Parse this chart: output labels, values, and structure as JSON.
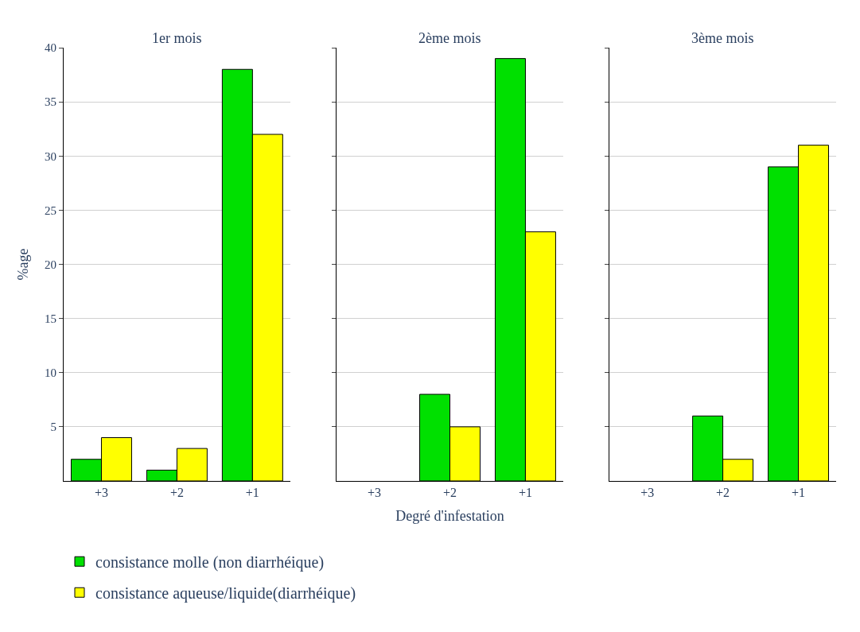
{
  "chart_data": [
    {
      "type": "bar",
      "title": "1er mois",
      "ylabel": "%age",
      "categories": [
        "+3",
        "+2",
        "+1"
      ],
      "ylim": [
        0,
        40
      ],
      "yticks": [
        5,
        10,
        15,
        20,
        25,
        30,
        35,
        40
      ],
      "grid": "y",
      "legend": "bottom",
      "series": [
        {
          "name": "consistance molle (non diarrhéique)",
          "color": "#00e000",
          "values": [
            2,
            1,
            38
          ]
        },
        {
          "name": "consistance aqueuse/liquide(diarrhéique)",
          "color": "#ffff00",
          "values": [
            4,
            3,
            32
          ]
        }
      ]
    },
    {
      "type": "bar",
      "title": "2ème mois",
      "xlabel": "Degré d'infestation",
      "categories": [
        "+3",
        "+2",
        "+1"
      ],
      "ylim": [
        0,
        40
      ],
      "yticks": [
        5,
        10,
        15,
        20,
        25,
        30,
        35,
        40
      ],
      "grid": "y",
      "tick_labels": "x",
      "series": [
        {
          "color": "#00e000",
          "values": [
            null,
            8,
            39
          ]
        },
        {
          "color": "#ffff00",
          "values": [
            null,
            5,
            23
          ]
        }
      ]
    },
    {
      "type": "bar",
      "title": "3ème mois",
      "categories": [
        "+3",
        "+2",
        "+1"
      ],
      "ylim": [
        0,
        40
      ],
      "yticks": [
        5,
        10,
        15,
        20,
        25,
        30,
        35,
        40
      ],
      "grid": "y",
      "tick_labels": "x",
      "series": [
        {
          "color": "#00e000",
          "values": [
            null,
            6,
            29
          ]
        },
        {
          "color": "#ffff00",
          "values": [
            null,
            2,
            31
          ]
        }
      ]
    }
  ]
}
